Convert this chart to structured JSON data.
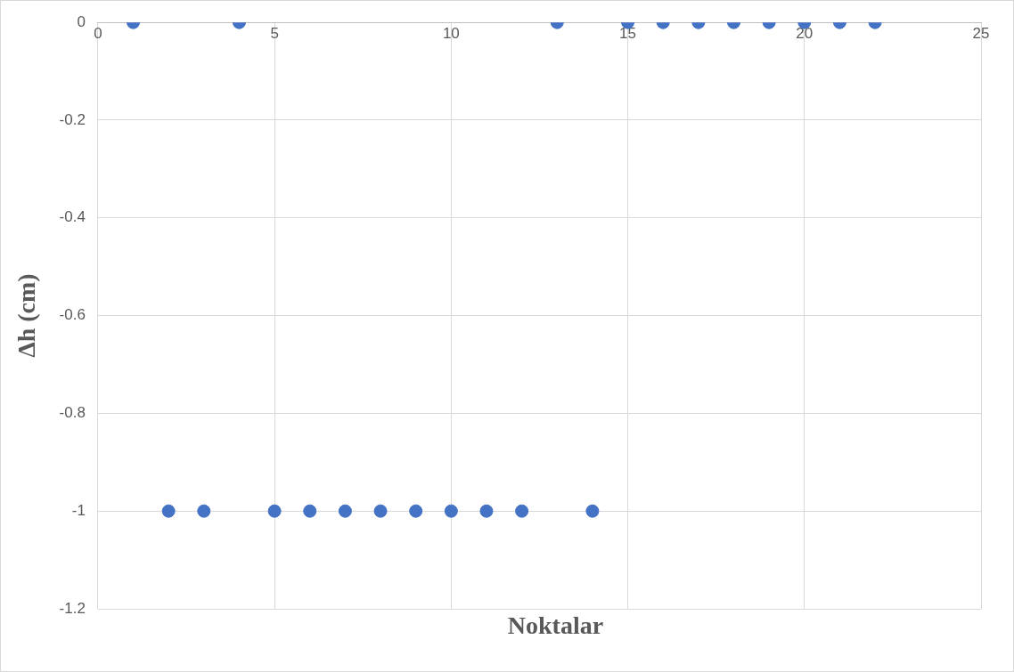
{
  "chart_data": {
    "type": "scatter",
    "xlabel": "Noktalar",
    "ylabel": "Δh (cm)",
    "x": [
      1,
      2,
      3,
      4,
      5,
      6,
      7,
      8,
      9,
      10,
      11,
      12,
      13,
      14,
      15,
      16,
      17,
      18,
      19,
      20,
      21,
      22
    ],
    "values": [
      0,
      -1,
      -1,
      0,
      -1,
      -1,
      -1,
      -1,
      -1,
      -1,
      -1,
      -1,
      0,
      -1,
      0,
      0,
      0,
      0,
      0,
      0,
      0,
      0
    ],
    "color": "#4472c4",
    "marker": "circle",
    "xlim": [
      0,
      25
    ],
    "xticks": [
      0,
      5,
      10,
      15,
      20,
      25
    ],
    "ylim": [
      -1.2,
      0
    ],
    "yticks": [
      -1.2,
      -1,
      -0.8,
      -0.6,
      -0.4,
      -0.2,
      0
    ],
    "grid": true
  }
}
